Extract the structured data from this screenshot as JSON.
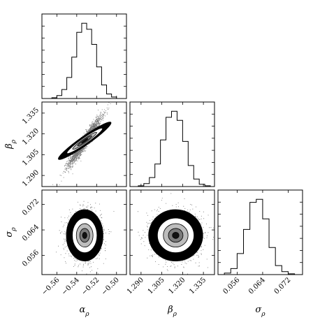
{
  "chart_data": {
    "type": "corner",
    "parameters": [
      {
        "name": "alpha_rho",
        "label": "α",
        "sub": "ρ",
        "range": [
          -0.575,
          -0.49
        ],
        "ticks": [
          -0.56,
          -0.54,
          -0.52,
          -0.5
        ],
        "tick_labels": [
          "−0.56",
          "−0.54",
          "−0.52",
          "−0.50"
        ]
      },
      {
        "name": "beta_rho",
        "label": "β",
        "sub": "ρ",
        "range": [
          1.282,
          1.343
        ],
        "ticks": [
          1.29,
          1.305,
          1.32,
          1.335
        ],
        "tick_labels": [
          "1.290",
          "1.305",
          "1.320",
          "1.335"
        ]
      },
      {
        "name": "sigma_rho",
        "label": "σ",
        "sub": "ρ",
        "range": [
          0.05,
          0.0765
        ],
        "ticks": [
          0.056,
          0.064,
          0.072
        ],
        "tick_labels": [
          "0.056",
          "0.064",
          "0.072"
        ]
      }
    ],
    "histograms": [
      {
        "param": 0,
        "edges": [
          -0.565,
          -0.56,
          -0.555,
          -0.55,
          -0.545,
          -0.54,
          -0.535,
          -0.53,
          -0.525,
          -0.52,
          -0.515,
          -0.51,
          -0.505,
          -0.5
        ],
        "counts": [
          1,
          4,
          12,
          28,
          55,
          88,
          100,
          92,
          72,
          42,
          18,
          6,
          2
        ]
      },
      {
        "param": 1,
        "edges": [
          1.288,
          1.292,
          1.296,
          1.3,
          1.304,
          1.308,
          1.312,
          1.316,
          1.32,
          1.324,
          1.328,
          1.332,
          1.336,
          1.34
        ],
        "counts": [
          1,
          4,
          12,
          30,
          62,
          92,
          100,
          88,
          60,
          28,
          10,
          3,
          1
        ]
      },
      {
        "param": 2,
        "edges": [
          0.052,
          0.054,
          0.056,
          0.058,
          0.06,
          0.062,
          0.064,
          0.066,
          0.068,
          0.07,
          0.072,
          0.074
        ],
        "counts": [
          2,
          8,
          28,
          60,
          96,
          100,
          74,
          36,
          12,
          4,
          1
        ]
      }
    ],
    "joint": [
      {
        "x": 0,
        "y": 1,
        "mean": [
          -0.532,
          1.315
        ],
        "sd": [
          0.008,
          0.0085
        ],
        "corr": 0.95
      },
      {
        "x": 0,
        "y": 2,
        "mean": [
          -0.532,
          0.0623
        ],
        "sd": [
          0.008,
          0.0035
        ],
        "corr": 0.0
      },
      {
        "x": 1,
        "y": 2,
        "mean": [
          1.315,
          0.0623
        ],
        "sd": [
          0.0085,
          0.0035
        ],
        "corr": 0.0
      }
    ]
  }
}
